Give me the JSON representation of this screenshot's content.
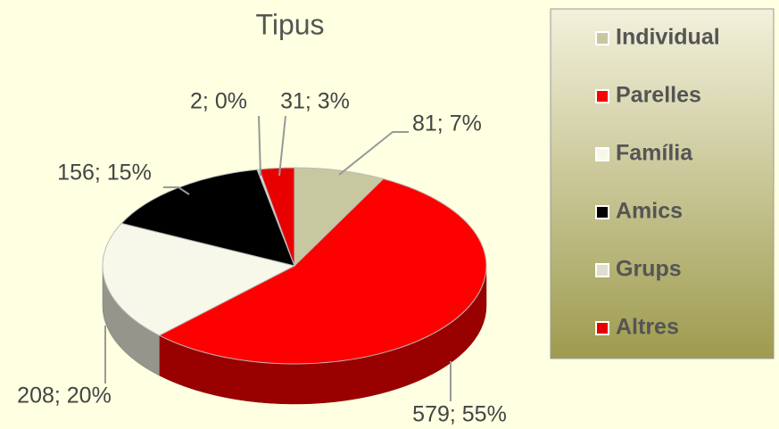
{
  "chart_data": {
    "type": "pie",
    "title": "Tipus",
    "categories": [
      "Individual",
      "Parelles",
      "Família",
      "Amics",
      "Grups",
      "Altres"
    ],
    "values": [
      81,
      579,
      208,
      156,
      2,
      31
    ],
    "value_labels": [
      "81; 7%",
      "579; 55%",
      "208; 20%",
      "156; 15%",
      "2; 0%",
      "31; 3%"
    ],
    "colors": [
      "#c8c8a0",
      "#ff0000",
      "#f8f8ea",
      "#000000",
      "#deded0",
      "#e80000"
    ],
    "legend": "right"
  }
}
